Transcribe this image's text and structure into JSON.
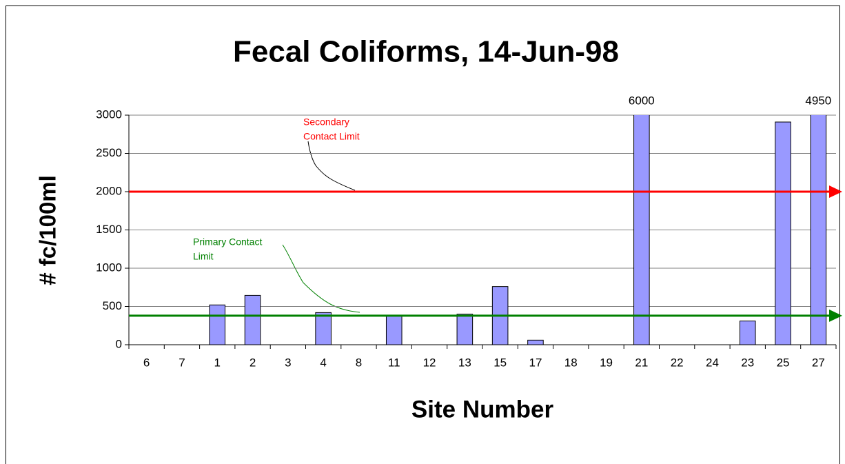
{
  "chart_data": {
    "type": "bar",
    "title": "Fecal Coliforms, 14-Jun-98",
    "y_label": "# fc/100ml",
    "x_label": "Site Number",
    "categories": [
      "6",
      "7",
      "1",
      "2",
      "3",
      "4",
      "8",
      "11",
      "12",
      "13",
      "15",
      "17",
      "18",
      "19",
      "21",
      "22",
      "24",
      "23",
      "25",
      "27"
    ],
    "values": [
      null,
      null,
      520,
      645,
      null,
      420,
      null,
      380,
      null,
      400,
      760,
      60,
      null,
      null,
      6000,
      null,
      null,
      310,
      2910,
      4950
    ],
    "value_labels": [
      null,
      null,
      null,
      null,
      null,
      null,
      null,
      null,
      null,
      null,
      null,
      null,
      null,
      null,
      "6000",
      null,
      null,
      null,
      null,
      "4950"
    ],
    "color": "#9999ff",
    "ylim": [
      0,
      3000
    ],
    "yticks": [
      0,
      500,
      1000,
      1500,
      2000,
      2500,
      3000
    ],
    "grid": true,
    "reference_lines": [
      {
        "label": [
          "Secondary",
          "Contact Limit"
        ],
        "value": 2000,
        "color": "#ff0000"
      },
      {
        "label": [
          "Primary Contact",
          "Limit"
        ],
        "value": 380,
        "color": "#008000"
      }
    ]
  }
}
